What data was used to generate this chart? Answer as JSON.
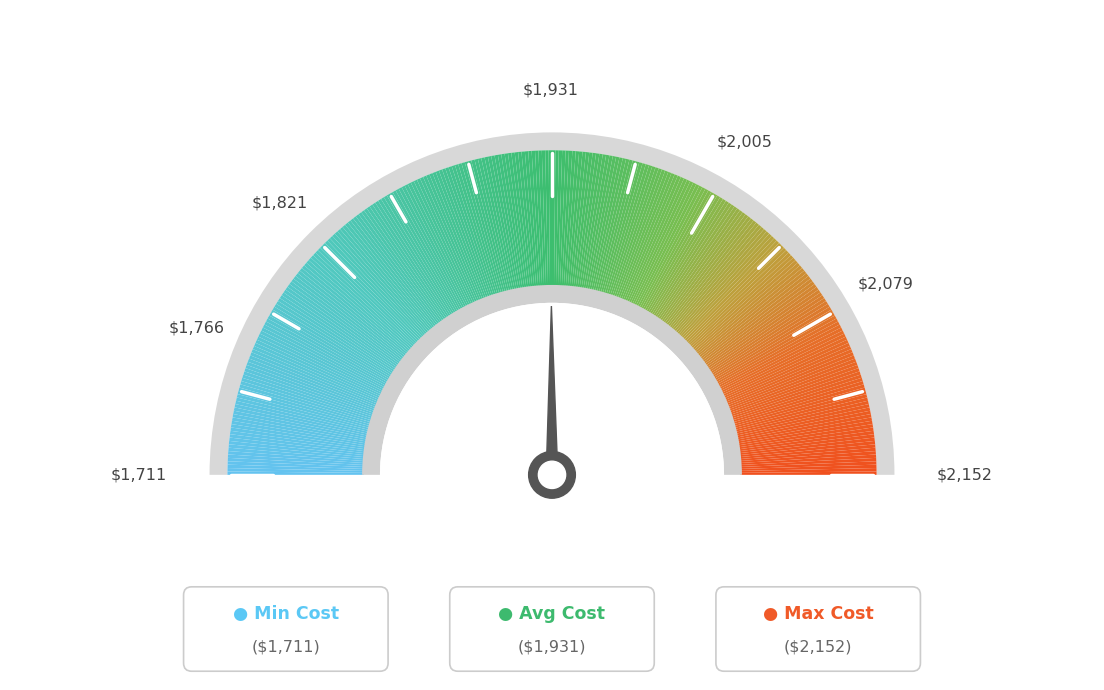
{
  "min_val": 1711,
  "max_val": 2152,
  "avg_val": 1931,
  "label_values": [
    1711,
    1766,
    1821,
    1931,
    2005,
    2079,
    2152
  ],
  "labels": [
    "$1,711",
    "$1,766",
    "$1,821",
    "$1,931",
    "$2,005",
    "$2,079",
    "$2,152"
  ],
  "legend": [
    {
      "label": "Min Cost",
      "value": "($1,711)",
      "color": "#5bc8f5"
    },
    {
      "label": "Avg Cost",
      "value": "($1,931)",
      "color": "#3dba6e"
    },
    {
      "label": "Max Cost",
      "value": "($2,152)",
      "color": "#f05a28"
    }
  ],
  "bg_color": "#ffffff",
  "needle_color": "#555555",
  "tick_color": "#ffffff",
  "color_stops": [
    [
      0.0,
      [
        100,
        195,
        240
      ]
    ],
    [
      0.25,
      [
        80,
        200,
        190
      ]
    ],
    [
      0.5,
      [
        60,
        190,
        110
      ]
    ],
    [
      0.65,
      [
        120,
        190,
        80
      ]
    ],
    [
      0.75,
      [
        190,
        160,
        60
      ]
    ],
    [
      0.85,
      [
        230,
        110,
        40
      ]
    ],
    [
      1.0,
      [
        240,
        80,
        30
      ]
    ]
  ]
}
